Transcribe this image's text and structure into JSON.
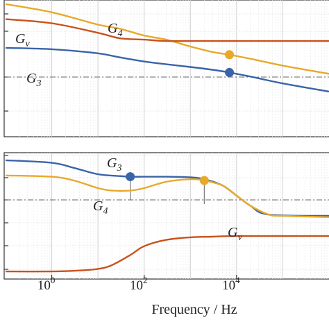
{
  "chart_data": [
    {
      "type": "line",
      "panel": "top",
      "xscale": "log",
      "xlim": [
        0.1,
        1000000
      ],
      "grid": true,
      "reference_line": {
        "style": "dash-dot"
      },
      "series": [
        {
          "name": "G4",
          "label_main": "G",
          "label_sub": "4",
          "color": "#e8a92b",
          "x": [
            0.1,
            1,
            10,
            30,
            100,
            300,
            1000,
            3000,
            7000,
            20000,
            100000,
            1000000
          ],
          "y": [
            0.97,
            0.91,
            0.82,
            0.79,
            0.74,
            0.71,
            0.66,
            0.62,
            0.6,
            0.57,
            0.52,
            0.46
          ],
          "marker": {
            "x": 7000,
            "y": 0.6
          }
        },
        {
          "name": "Gv",
          "label_main": "G",
          "label_sub": "v",
          "color": "#c9521c",
          "x": [
            0.1,
            1,
            10,
            30,
            100,
            300,
            1000,
            10000,
            1000000
          ],
          "y": [
            0.86,
            0.83,
            0.76,
            0.72,
            0.71,
            0.7,
            0.7,
            0.7,
            0.7
          ]
        },
        {
          "name": "G3",
          "label_main": "G",
          "label_sub": "3",
          "color": "#3a64a8",
          "x": [
            0.1,
            1,
            10,
            30,
            100,
            300,
            1000,
            3000,
            7000,
            20000,
            100000,
            1000000
          ],
          "y": [
            0.65,
            0.64,
            0.61,
            0.58,
            0.55,
            0.53,
            0.51,
            0.49,
            0.47,
            0.44,
            0.39,
            0.33
          ],
          "marker": {
            "x": 7000,
            "y": 0.47
          }
        }
      ]
    },
    {
      "type": "line",
      "panel": "bottom",
      "xscale": "log",
      "xlim": [
        0.1,
        1000000
      ],
      "xlabel": "Frequency / Hz",
      "xticks": [
        {
          "value": 1,
          "base": "10",
          "exp": "0"
        },
        {
          "value": 100,
          "base": "10",
          "exp": "2"
        },
        {
          "value": 10000,
          "base": "10",
          "exp": "4"
        }
      ],
      "grid": true,
      "reference_line": {
        "style": "dash-dot"
      },
      "series": [
        {
          "name": "G3",
          "label_main": "G",
          "label_sub": "3",
          "color": "#3a64a8",
          "x": [
            0.1,
            1,
            3,
            10,
            30,
            50,
            100,
            300,
            1000,
            2000,
            5000,
            10000,
            20000,
            50000,
            1000000
          ],
          "y": [
            0.94,
            0.92,
            0.88,
            0.83,
            0.815,
            0.81,
            0.81,
            0.81,
            0.805,
            0.79,
            0.74,
            0.66,
            0.58,
            0.51,
            0.5
          ],
          "marker": {
            "x": 50,
            "y": 0.81
          }
        },
        {
          "name": "G4",
          "label_main": "G",
          "label_sub": "4",
          "color": "#e8a92b",
          "x": [
            0.1,
            1,
            3,
            10,
            20,
            50,
            100,
            300,
            1000,
            2000,
            5000,
            10000,
            20000,
            50000,
            100000,
            1000000
          ],
          "y": [
            0.82,
            0.81,
            0.78,
            0.72,
            0.7,
            0.7,
            0.72,
            0.77,
            0.79,
            0.78,
            0.74,
            0.66,
            0.58,
            0.51,
            0.5,
            0.49
          ],
          "marker": {
            "x": 2000,
            "y": 0.78
          }
        },
        {
          "name": "Gv",
          "label_main": "G",
          "label_sub": "v",
          "color": "#c9521c",
          "x": [
            0.1,
            1,
            3,
            10,
            20,
            50,
            100,
            300,
            1000,
            3000,
            10000,
            1000000
          ],
          "y": [
            0.06,
            0.06,
            0.065,
            0.08,
            0.11,
            0.19,
            0.26,
            0.31,
            0.33,
            0.335,
            0.34,
            0.34
          ]
        }
      ]
    }
  ]
}
